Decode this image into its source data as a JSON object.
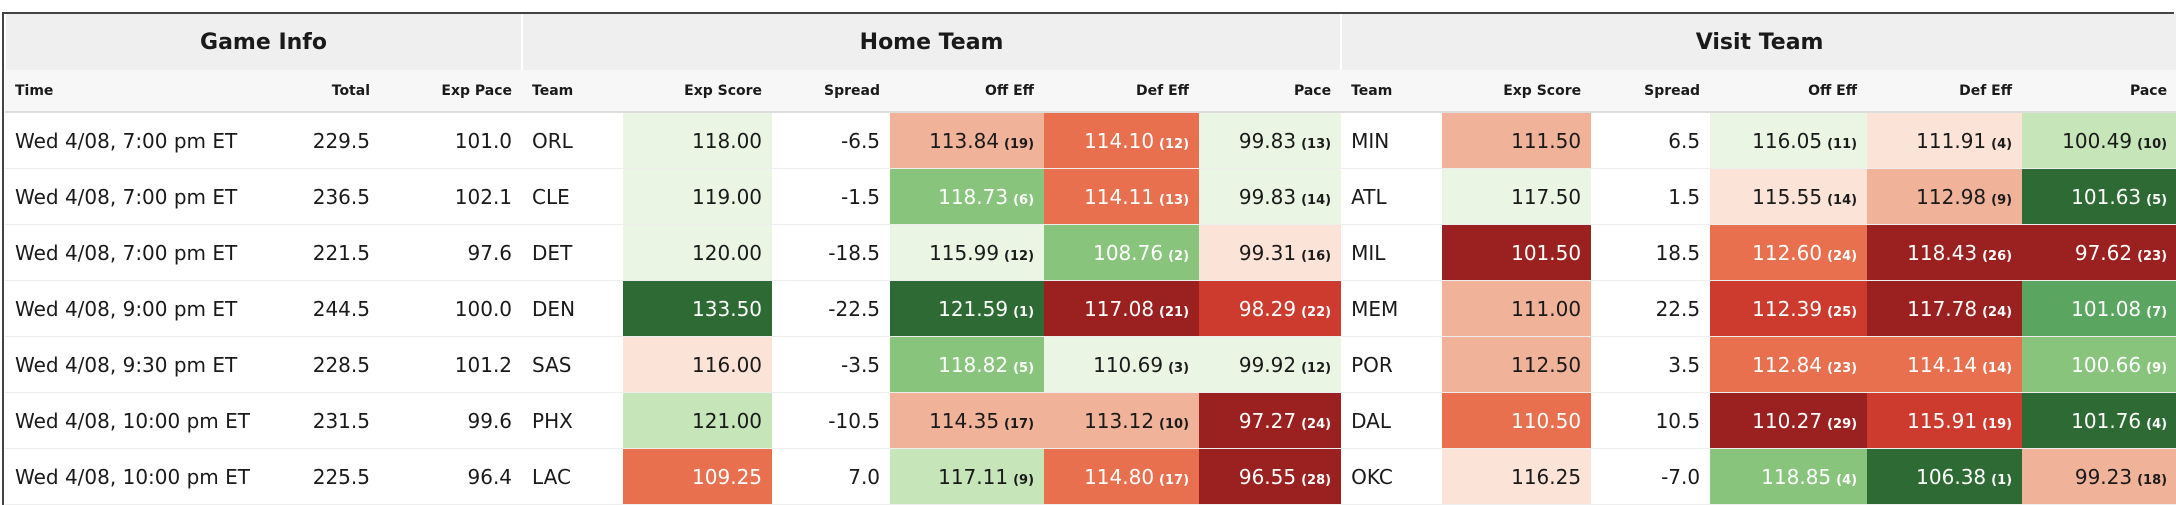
{
  "table": {
    "groups": [
      {
        "label": "Game Info",
        "span": 3
      },
      {
        "label": "Home Team",
        "span": 6
      },
      {
        "label": "Visit Team",
        "span": 6
      }
    ],
    "columns": [
      "Time",
      "Total",
      "Exp Pace",
      "Team",
      "Exp Score",
      "Spread",
      "Off Eff",
      "Def Eff",
      "Pace",
      "Team",
      "Exp Score",
      "Spread",
      "Off Eff",
      "Def Eff",
      "Pace"
    ],
    "rows": [
      [
        "Wed 4/08, 7:00 pm ET",
        "229.5",
        "101.0",
        "ORL",
        {
          "text": "118.00",
          "bg": "#eaf5e4"
        },
        "-6.5",
        {
          "text": "113.84",
          "rank": "(19)",
          "bg": "#f1b29a"
        },
        {
          "text": "114.10",
          "rank": "(12)",
          "bg": "#e8704f",
          "fg": "#ffffff"
        },
        {
          "text": "99.83",
          "rank": "(13)",
          "bg": "#eaf5e4"
        },
        "MIN",
        {
          "text": "111.50",
          "bg": "#f1b29a"
        },
        "6.5",
        {
          "text": "116.05",
          "rank": "(11)",
          "bg": "#eaf5e4"
        },
        {
          "text": "111.91",
          "rank": "(4)",
          "bg": "#fbe3d8"
        },
        {
          "text": "100.49",
          "rank": "(10)",
          "bg": "#c6e5b9"
        }
      ],
      [
        "Wed 4/08, 7:00 pm ET",
        "236.5",
        "102.1",
        "CLE",
        {
          "text": "119.00",
          "bg": "#eaf5e4"
        },
        "-1.5",
        {
          "text": "118.73",
          "rank": "(6)",
          "bg": "#88c47c",
          "fg": "#ffffff"
        },
        {
          "text": "114.11",
          "rank": "(13)",
          "bg": "#e8704f",
          "fg": "#ffffff"
        },
        {
          "text": "99.83",
          "rank": "(14)",
          "bg": "#eaf5e4"
        },
        "ATL",
        {
          "text": "117.50",
          "bg": "#eaf5e4"
        },
        "1.5",
        {
          "text": "115.55",
          "rank": "(14)",
          "bg": "#fbe3d8"
        },
        {
          "text": "112.98",
          "rank": "(9)",
          "bg": "#f1b29a"
        },
        {
          "text": "101.63",
          "rank": "(5)",
          "bg": "#2e6b34",
          "fg": "#ffffff"
        }
      ],
      [
        "Wed 4/08, 7:00 pm ET",
        "221.5",
        "97.6",
        "DET",
        {
          "text": "120.00",
          "bg": "#eaf5e4"
        },
        "-18.5",
        {
          "text": "115.99",
          "rank": "(12)",
          "bg": "#eaf5e4"
        },
        {
          "text": "108.76",
          "rank": "(2)",
          "bg": "#88c47c",
          "fg": "#ffffff"
        },
        {
          "text": "99.31",
          "rank": "(16)",
          "bg": "#fbe3d8"
        },
        "MIL",
        {
          "text": "101.50",
          "bg": "#9b2020",
          "fg": "#ffffff"
        },
        "18.5",
        {
          "text": "112.60",
          "rank": "(24)",
          "bg": "#e8704f",
          "fg": "#ffffff"
        },
        {
          "text": "118.43",
          "rank": "(26)",
          "bg": "#9b2020",
          "fg": "#ffffff"
        },
        {
          "text": "97.62",
          "rank": "(23)",
          "bg": "#9b2020",
          "fg": "#ffffff"
        }
      ],
      [
        "Wed 4/08, 9:00 pm ET",
        "244.5",
        "100.0",
        "DEN",
        {
          "text": "133.50",
          "bg": "#2e6b34",
          "fg": "#ffffff"
        },
        "-22.5",
        {
          "text": "121.59",
          "rank": "(1)",
          "bg": "#2e6b34",
          "fg": "#ffffff"
        },
        {
          "text": "117.08",
          "rank": "(21)",
          "bg": "#9b2020",
          "fg": "#ffffff"
        },
        {
          "text": "98.29",
          "rank": "(22)",
          "bg": "#cc3b2e",
          "fg": "#ffffff"
        },
        "MEM",
        {
          "text": "111.00",
          "bg": "#f1b29a"
        },
        "22.5",
        {
          "text": "112.39",
          "rank": "(25)",
          "bg": "#cc3b2e",
          "fg": "#ffffff"
        },
        {
          "text": "117.78",
          "rank": "(24)",
          "bg": "#9b2020",
          "fg": "#ffffff"
        },
        {
          "text": "101.08",
          "rank": "(7)",
          "bg": "#5aa660",
          "fg": "#ffffff"
        }
      ],
      [
        "Wed 4/08, 9:30 pm ET",
        "228.5",
        "101.2",
        "SAS",
        {
          "text": "116.00",
          "bg": "#fbe3d8"
        },
        "-3.5",
        {
          "text": "118.82",
          "rank": "(5)",
          "bg": "#88c47c",
          "fg": "#ffffff"
        },
        {
          "text": "110.69",
          "rank": "(3)",
          "bg": "#eaf5e4"
        },
        {
          "text": "99.92",
          "rank": "(12)",
          "bg": "#eaf5e4"
        },
        "POR",
        {
          "text": "112.50",
          "bg": "#f1b29a"
        },
        "3.5",
        {
          "text": "112.84",
          "rank": "(23)",
          "bg": "#e8704f",
          "fg": "#ffffff"
        },
        {
          "text": "114.14",
          "rank": "(14)",
          "bg": "#e8704f",
          "fg": "#ffffff"
        },
        {
          "text": "100.66",
          "rank": "(9)",
          "bg": "#88c47c",
          "fg": "#ffffff"
        }
      ],
      [
        "Wed 4/08, 10:00 pm ET",
        "231.5",
        "99.6",
        "PHX",
        {
          "text": "121.00",
          "bg": "#c6e5b9"
        },
        "-10.5",
        {
          "text": "114.35",
          "rank": "(17)",
          "bg": "#f1b29a"
        },
        {
          "text": "113.12",
          "rank": "(10)",
          "bg": "#f1b29a"
        },
        {
          "text": "97.27",
          "rank": "(24)",
          "bg": "#9b2020",
          "fg": "#ffffff"
        },
        "DAL",
        {
          "text": "110.50",
          "bg": "#e8704f",
          "fg": "#ffffff"
        },
        "10.5",
        {
          "text": "110.27",
          "rank": "(29)",
          "bg": "#9b2020",
          "fg": "#ffffff"
        },
        {
          "text": "115.91",
          "rank": "(19)",
          "bg": "#cc3b2e",
          "fg": "#ffffff"
        },
        {
          "text": "101.76",
          "rank": "(4)",
          "bg": "#2e6b34",
          "fg": "#ffffff"
        }
      ],
      [
        "Wed 4/08, 10:00 pm ET",
        "225.5",
        "96.4",
        "LAC",
        {
          "text": "109.25",
          "bg": "#e8704f",
          "fg": "#ffffff"
        },
        "7.0",
        {
          "text": "117.11",
          "rank": "(9)",
          "bg": "#c6e5b9"
        },
        {
          "text": "114.80",
          "rank": "(17)",
          "bg": "#e8704f",
          "fg": "#ffffff"
        },
        {
          "text": "96.55",
          "rank": "(28)",
          "bg": "#9b2020",
          "fg": "#ffffff"
        },
        "OKC",
        {
          "text": "116.25",
          "bg": "#fbe3d8"
        },
        "-7.0",
        {
          "text": "118.85",
          "rank": "(4)",
          "bg": "#88c47c",
          "fg": "#ffffff"
        },
        {
          "text": "106.38",
          "rank": "(1)",
          "bg": "#2e6b34",
          "fg": "#ffffff"
        },
        {
          "text": "99.23",
          "rank": "(18)",
          "bg": "#f1b29a"
        }
      ]
    ]
  }
}
